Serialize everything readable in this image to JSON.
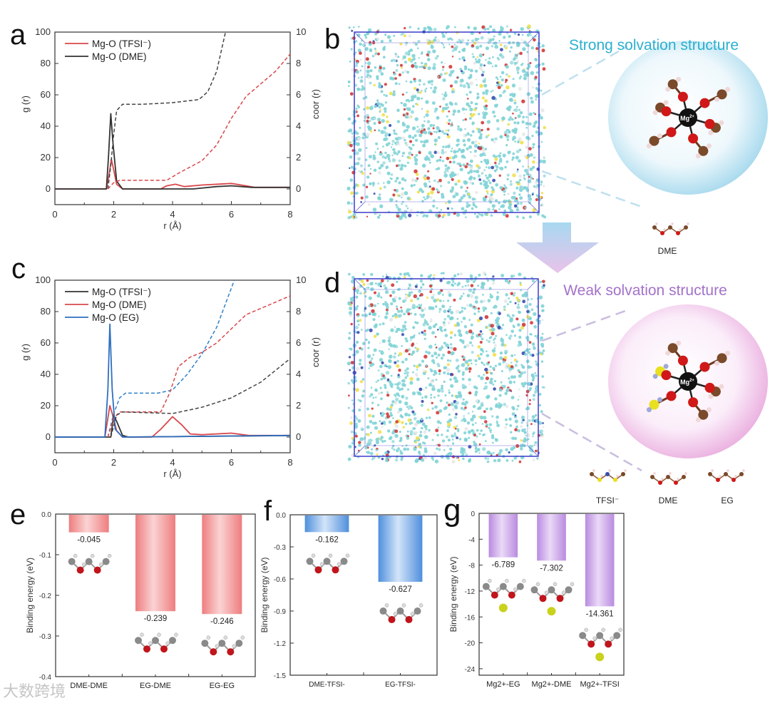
{
  "panel_labels": {
    "a": "a",
    "b": "b",
    "c": "c",
    "d": "d",
    "e": "e",
    "f": "f",
    "g": "g"
  },
  "schematic": {
    "strong_title": "Strong solvation structure",
    "weak_title": "Weak solvation structure",
    "mg_label": "Mg",
    "mg_charge": "2+",
    "strong_molecule_label": "DME",
    "weak_molecule_labels": [
      "TFSI⁻",
      "DME",
      "EG"
    ],
    "colors": {
      "strong": "#2bb0cf",
      "weak": "#a372c9"
    }
  },
  "watermark": "大数跨境",
  "chart_data": [
    {
      "id": "a",
      "type": "line",
      "xlabel": "r (Å)",
      "ylabel": "g (r)",
      "y2label": "coor (r)",
      "xlim": [
        0,
        8
      ],
      "ylim": [
        -10,
        100
      ],
      "y2lim": [
        -1,
        10
      ],
      "xticks": [
        "0",
        "2",
        "4",
        "6",
        "8"
      ],
      "yticks": [
        "0",
        "20",
        "40",
        "60",
        "80",
        "100"
      ],
      "y2ticks": [
        "0",
        "2",
        "4",
        "6",
        "8",
        "10"
      ],
      "legend": [
        "Mg-O (TFSI⁻)",
        "Mg-O (DME)"
      ],
      "legend_colors": [
        "#d9474b",
        "#333333"
      ],
      "legend_position": "top-left",
      "series": [
        {
          "name": "Mg-O (TFSI⁻) g(r)",
          "color": "#d9474b",
          "style": "solid",
          "axis": "left",
          "points": [
            [
              0,
              0
            ],
            [
              1.75,
              0
            ],
            [
              1.85,
              10
            ],
            [
              1.92,
              19
            ],
            [
              2.0,
              12
            ],
            [
              2.1,
              3
            ],
            [
              2.3,
              0
            ],
            [
              3.6,
              0
            ],
            [
              3.8,
              2
            ],
            [
              4.1,
              3
            ],
            [
              4.4,
              1.5
            ],
            [
              5,
              2.5
            ],
            [
              6,
              3.5
            ],
            [
              6.5,
              2
            ],
            [
              6.8,
              1
            ],
            [
              8,
              1
            ]
          ]
        },
        {
          "name": "Mg-O (DME) g(r)",
          "color": "#333333",
          "style": "solid",
          "axis": "left",
          "points": [
            [
              0,
              0
            ],
            [
              1.75,
              0
            ],
            [
              1.82,
              20
            ],
            [
              1.9,
              48
            ],
            [
              1.97,
              30
            ],
            [
              2.1,
              5
            ],
            [
              2.3,
              0
            ],
            [
              4.7,
              0
            ],
            [
              5.5,
              1.5
            ],
            [
              6,
              2
            ],
            [
              6.7,
              1
            ],
            [
              8,
              1
            ]
          ]
        },
        {
          "name": "Mg-O (DME) coor",
          "color": "#444444",
          "style": "dashed",
          "axis": "right",
          "points": [
            [
              1.8,
              0
            ],
            [
              1.9,
              1.5
            ],
            [
              2.0,
              3.5
            ],
            [
              2.1,
              5
            ],
            [
              2.3,
              5.4
            ],
            [
              3,
              5.4
            ],
            [
              4,
              5.5
            ],
            [
              4.9,
              5.7
            ],
            [
              5.2,
              6.2
            ],
            [
              5.5,
              7.5
            ],
            [
              5.8,
              10
            ]
          ]
        },
        {
          "name": "Mg-O (TFSI⁻) coor",
          "color": "#d9474b",
          "style": "dashed",
          "axis": "right",
          "points": [
            [
              1.8,
              0
            ],
            [
              1.9,
              0.2
            ],
            [
              2.0,
              0.4
            ],
            [
              2.2,
              0.55
            ],
            [
              3.8,
              0.55
            ],
            [
              4.2,
              1
            ],
            [
              5,
              1.8
            ],
            [
              5.5,
              2.8
            ],
            [
              6,
              4.5
            ],
            [
              6.5,
              5.9
            ],
            [
              7,
              6.7
            ],
            [
              7.5,
              7.5
            ],
            [
              8,
              8.6
            ]
          ]
        }
      ]
    },
    {
      "id": "c",
      "type": "line",
      "xlabel": "r (Å)",
      "ylabel": "g (r)",
      "y2label": "coor (r)",
      "xlim": [
        0,
        8
      ],
      "ylim": [
        -10,
        100
      ],
      "y2lim": [
        -1,
        10
      ],
      "xticks": [
        "0",
        "2",
        "4",
        "6",
        "8"
      ],
      "yticks": [
        "0",
        "20",
        "40",
        "60",
        "80",
        "100"
      ],
      "y2ticks": [
        "0",
        "2",
        "4",
        "6",
        "8",
        "10"
      ],
      "legend": [
        "Mg-O (TFSI⁻)",
        "Mg-O (DME)",
        "Mg-O (EG)"
      ],
      "legend_colors": [
        "#333333",
        "#d9474b",
        "#2f6fc0"
      ],
      "legend_position": "top-left",
      "series": [
        {
          "name": "Mg-O (DME) g(r)",
          "color": "#d9474b",
          "style": "solid",
          "axis": "left",
          "points": [
            [
              0,
              0
            ],
            [
              1.7,
              0
            ],
            [
              1.8,
              12
            ],
            [
              1.87,
              20
            ],
            [
              1.95,
              15
            ],
            [
              2.1,
              4
            ],
            [
              2.3,
              0
            ],
            [
              3.3,
              0
            ],
            [
              3.6,
              5
            ],
            [
              4,
              13
            ],
            [
              4.3,
              8
            ],
            [
              4.6,
              2
            ],
            [
              5,
              1.5
            ],
            [
              6,
              2.5
            ],
            [
              6.6,
              1
            ],
            [
              8,
              1
            ]
          ]
        },
        {
          "name": "Mg-O (TFSI⁻) g(r)",
          "color": "#333333",
          "style": "solid",
          "axis": "left",
          "points": [
            [
              0,
              0
            ],
            [
              1.9,
              0
            ],
            [
              2.0,
              14
            ],
            [
              2.1,
              10
            ],
            [
              2.3,
              1
            ],
            [
              2.5,
              0
            ],
            [
              8,
              1
            ]
          ]
        },
        {
          "name": "Mg-O (EG) g(r)",
          "color": "#2f6fc0",
          "style": "solid",
          "axis": "left",
          "points": [
            [
              0,
              0
            ],
            [
              1.7,
              0
            ],
            [
              1.8,
              30
            ],
            [
              1.87,
              72
            ],
            [
              1.95,
              30
            ],
            [
              2.05,
              5
            ],
            [
              2.3,
              0
            ],
            [
              8,
              1
            ]
          ]
        },
        {
          "name": "Mg-O (EG) coor",
          "color": "#2f7fc8",
          "style": "dashed",
          "axis": "right",
          "points": [
            [
              1.8,
              0
            ],
            [
              2.0,
              1.5
            ],
            [
              2.2,
              2.5
            ],
            [
              2.4,
              2.8
            ],
            [
              3.5,
              2.8
            ],
            [
              4,
              3
            ],
            [
              4.5,
              4
            ],
            [
              5,
              5.3
            ],
            [
              5.5,
              7
            ],
            [
              5.8,
              8.5
            ],
            [
              6.1,
              10
            ]
          ]
        },
        {
          "name": "Mg-O (DME) coor",
          "color": "#d9474b",
          "style": "dashed",
          "axis": "right",
          "points": [
            [
              1.8,
              0
            ],
            [
              2.0,
              1.2
            ],
            [
              2.2,
              1.6
            ],
            [
              3.6,
              1.6
            ],
            [
              3.9,
              2.8
            ],
            [
              4.2,
              4.5
            ],
            [
              4.6,
              5.1
            ],
            [
              5,
              5.4
            ],
            [
              5.5,
              6
            ],
            [
              6,
              6.9
            ],
            [
              6.5,
              7.8
            ],
            [
              7,
              8.2
            ],
            [
              8,
              9
            ]
          ]
        },
        {
          "name": "Mg-O (TFSI⁻) coor",
          "color": "#444444",
          "style": "dashed",
          "axis": "right",
          "points": [
            [
              1.9,
              0
            ],
            [
              2.1,
              1.4
            ],
            [
              2.3,
              1.6
            ],
            [
              4,
              1.5
            ],
            [
              5,
              1.9
            ],
            [
              6,
              2.5
            ],
            [
              7,
              3.5
            ],
            [
              8,
              5
            ]
          ]
        }
      ]
    },
    {
      "id": "e",
      "type": "bar",
      "ylabel": "Binding energy (eV)",
      "ylim": [
        -0.4,
        0
      ],
      "yticks": [
        "0.0",
        "-0.1",
        "-0.2",
        "-0.3",
        "-0.4"
      ],
      "categories": [
        "DME-DME",
        "EG-DME",
        "EG-EG"
      ],
      "values": [
        -0.045,
        -0.239,
        -0.246
      ],
      "value_labels": [
        "-0.045",
        "-0.239",
        "-0.246"
      ],
      "colors": [
        "#ee7d7f",
        "#fbd3d3"
      ]
    },
    {
      "id": "f",
      "type": "bar",
      "ylabel": "Binding energy (eV)",
      "ylim": [
        -1.5,
        0
      ],
      "yticks": [
        "0.0",
        "-0.3",
        "-0.6",
        "-0.9",
        "-1.2",
        "-1.5"
      ],
      "categories": [
        "DME-TFSI-",
        "EG-TFSI-"
      ],
      "values": [
        -0.162,
        -0.627
      ],
      "value_labels": [
        "-0.162",
        "-0.627"
      ],
      "colors": [
        "#4f8fdc",
        "#d3e5f9"
      ]
    },
    {
      "id": "g",
      "type": "bar",
      "ylabel": "Binding energy (eV)",
      "ylim": [
        -25,
        0
      ],
      "yticks": [
        "0",
        "-4",
        "-8",
        "-12",
        "-16",
        "-20",
        "-24"
      ],
      "categories": [
        "Mg2+-EG",
        "Mg2+-DME",
        "Mg2+-TFSI"
      ],
      "values": [
        -6.789,
        -7.302,
        -14.361
      ],
      "value_labels": [
        "-6.789",
        "-7.302",
        "-14.361"
      ],
      "colors": [
        "#b98be0",
        "#ead9f7"
      ]
    }
  ]
}
